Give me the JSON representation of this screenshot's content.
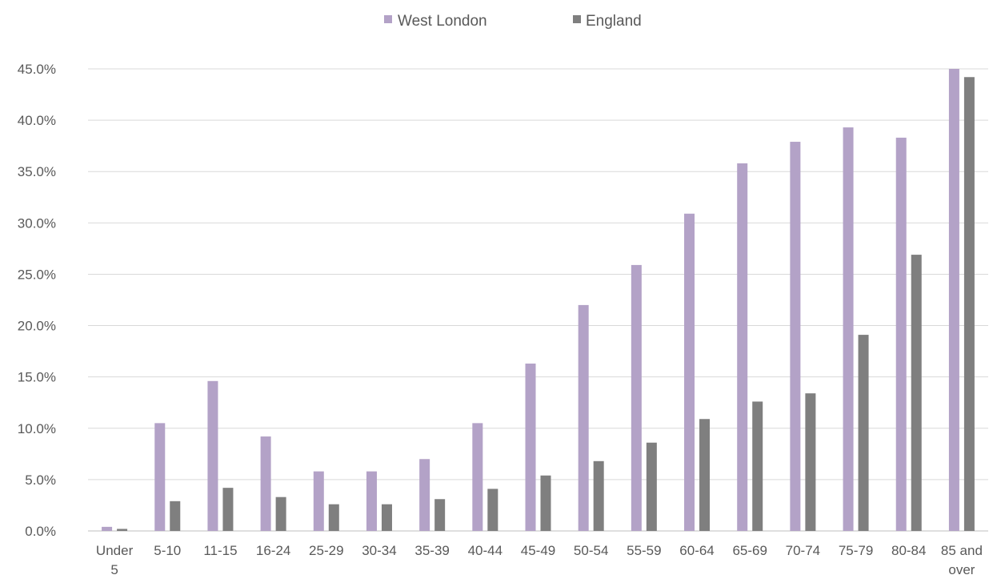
{
  "chart_data": {
    "type": "bar",
    "title": "",
    "xlabel": "",
    "ylabel": "",
    "ylim": [
      0,
      45
    ],
    "y_ticks": [
      "0.0%",
      "5.0%",
      "10.0%",
      "15.0%",
      "20.0%",
      "25.0%",
      "30.0%",
      "35.0%",
      "40.0%",
      "45.0%"
    ],
    "grid": true,
    "legend_position": "top-center",
    "categories": [
      "Under 5",
      "5-10",
      "11-15",
      "16-24",
      "25-29",
      "30-34",
      "35-39",
      "40-44",
      "45-49",
      "50-54",
      "55-59",
      "60-64",
      "65-69",
      "70-74",
      "75-79",
      "80-84",
      "85 and over"
    ],
    "series": [
      {
        "name": "West London",
        "color": "#b3a2c7",
        "values": [
          0.4,
          10.5,
          14.6,
          9.2,
          5.8,
          5.8,
          7.0,
          10.5,
          16.3,
          22.0,
          25.9,
          30.9,
          35.8,
          37.9,
          39.3,
          38.3,
          45.0
        ]
      },
      {
        "name": "England",
        "color": "#7f7f7f",
        "values": [
          0.2,
          2.9,
          4.2,
          3.3,
          2.6,
          2.6,
          3.1,
          4.1,
          5.4,
          6.8,
          8.6,
          10.9,
          12.6,
          13.4,
          19.1,
          26.9,
          44.2
        ]
      }
    ]
  }
}
